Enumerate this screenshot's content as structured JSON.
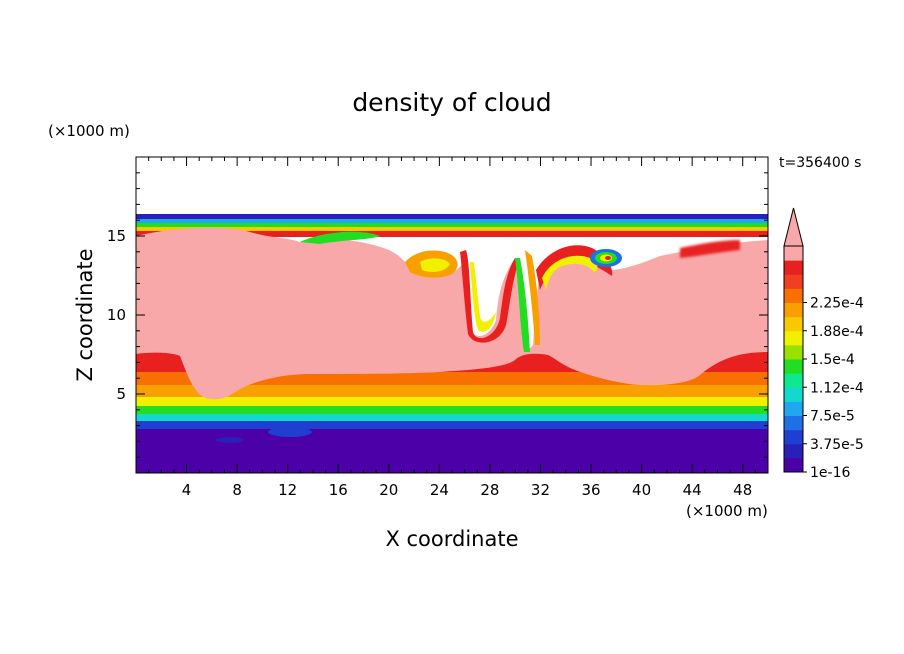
{
  "chart_data": {
    "type": "heatmap",
    "title": "density of cloud",
    "xlabel": "X coordinate",
    "ylabel": "Z coordinate",
    "x_unit": "(×1000 m)",
    "y_unit": "(×1000 m)",
    "time_label": "t=356400 s",
    "xlim": [
      0,
      50
    ],
    "ylim": [
      0,
      20
    ],
    "x_ticks": [
      4,
      8,
      12,
      16,
      20,
      24,
      28,
      32,
      36,
      40,
      44,
      48
    ],
    "y_ticks": [
      5,
      10,
      15
    ],
    "colorbar": {
      "extend": "max",
      "labels": [
        "1e-16",
        "3.75e-5",
        "7.5e-5",
        "1.12e-4",
        "1.5e-4",
        "1.88e-4",
        "2.25e-4"
      ],
      "colors": [
        "#4b00a8",
        "#2a1fb8",
        "#1f3fd0",
        "#1f6fe6",
        "#1fa8f0",
        "#12d8d0",
        "#10e890",
        "#22dd22",
        "#9ae000",
        "#f0f000",
        "#f8c800",
        "#f8a000",
        "#f87000",
        "#f04020",
        "#e82020",
        "#f8a8a8"
      ]
    },
    "regions": [
      {
        "level": "1e-16 (background)",
        "z_range": [
          0,
          2.7
        ]
      },
      {
        "level": "saturated (>2.25e-4)",
        "z_range": [
          4.5,
          15.5
        ]
      },
      {
        "level": "cloud top",
        "z": 16.2
      }
    ]
  }
}
